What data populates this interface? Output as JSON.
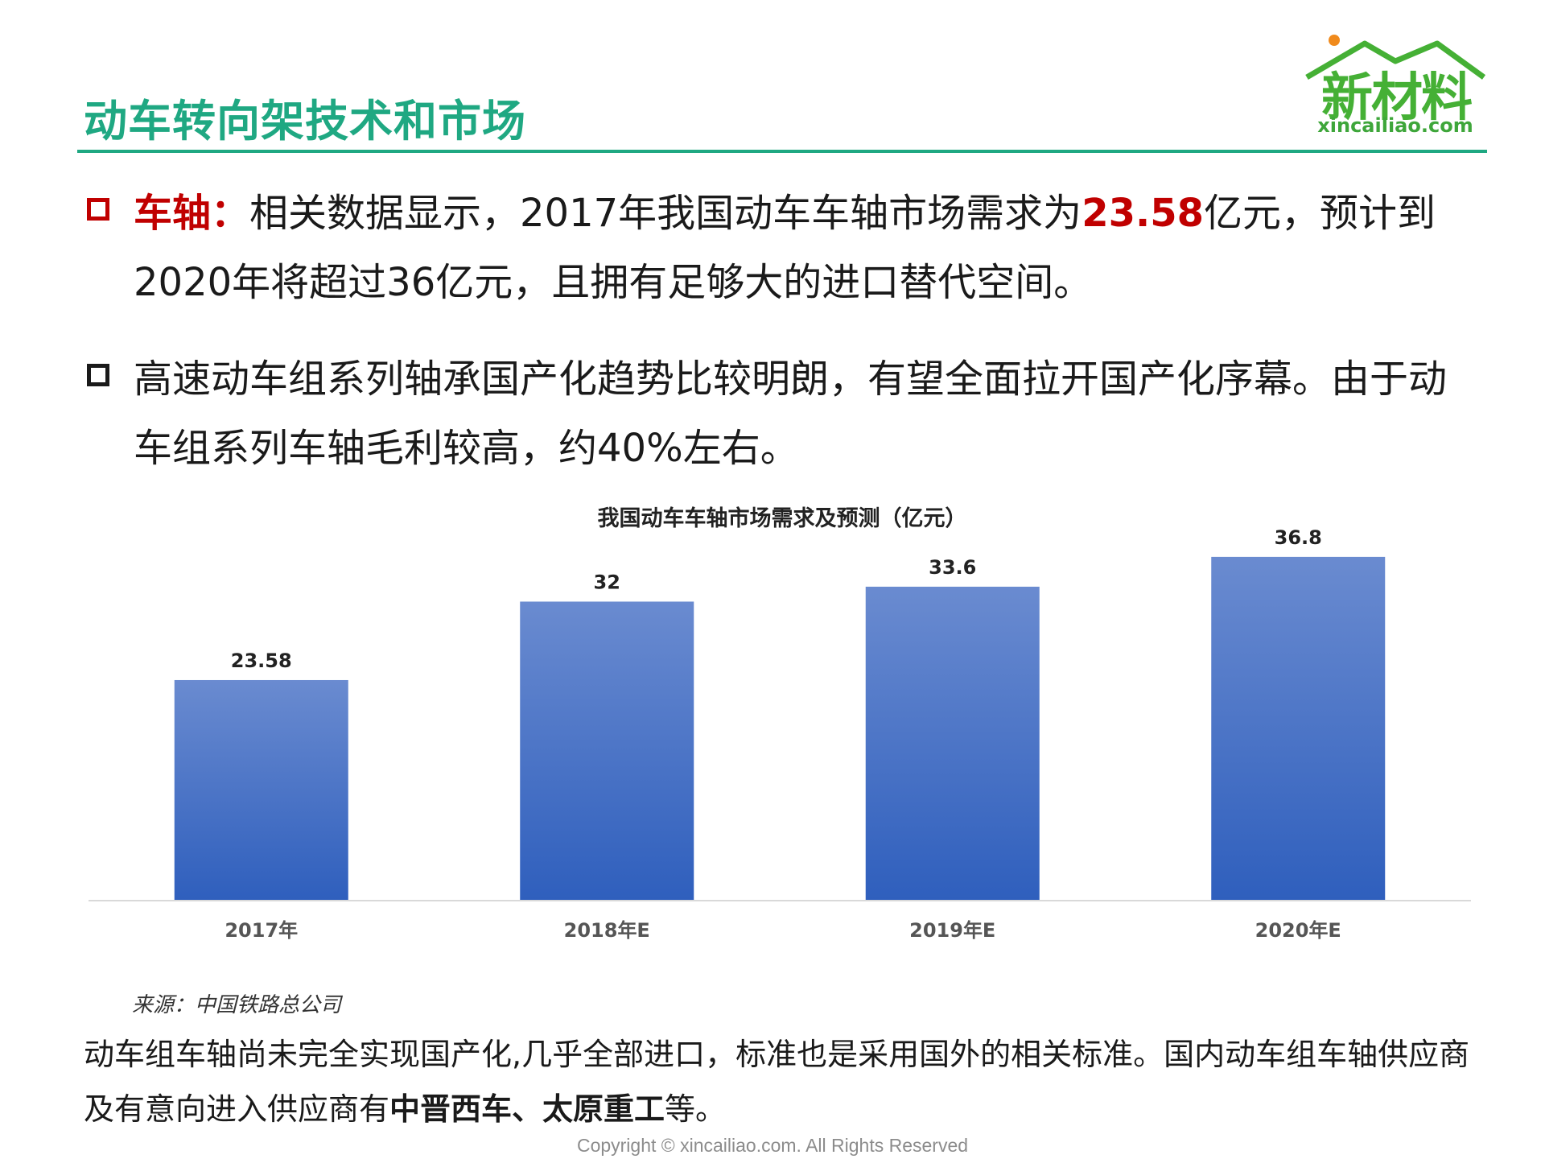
{
  "header": {
    "title": "动车转向架技术和市场",
    "logo_text": "新材料",
    "logo_url": "xincailiao.com"
  },
  "bullets": [
    {
      "key": "车轴：",
      "text_before": "相关数据显示，2017年我国动车车轴市场需求为",
      "highlight": "23.58",
      "text_after": "亿元，预计到2020年将超过36亿元，且拥有足够大的进口替代空间。"
    },
    {
      "text": "高速动车组系列轴承国产化趋势比较明朗，有望全面拉开国产化序幕。由于动车组系列车轴毛利较高，约40%左右。"
    }
  ],
  "chart_data": {
    "type": "bar",
    "title": "我国动车车轴市场需求及预测（亿元）",
    "categories": [
      "2017年",
      "2018年E",
      "2019年E",
      "2020年E"
    ],
    "values": [
      23.58,
      32,
      33.6,
      36.8
    ],
    "value_labels": [
      "23.58",
      "32",
      "33.6",
      "36.8"
    ],
    "ylim": [
      0,
      38
    ],
    "grid": false,
    "bar_color_top": "#6a8bd0",
    "bar_color_bottom": "#2f5fbd"
  },
  "source": "来源：中国铁路总公司",
  "paragraph": {
    "text_before": "动车组车轴尚未完全实现国产化,几乎全部进口，标准也是采用国外的相关标准。国内动车组车轴供应商及有意向进入供应商有",
    "bold": "中晋西车、太原重工",
    "text_after": "等。"
  },
  "footer": {
    "copyright": "Copyright © xincailiao.com. All Rights Reserved"
  }
}
